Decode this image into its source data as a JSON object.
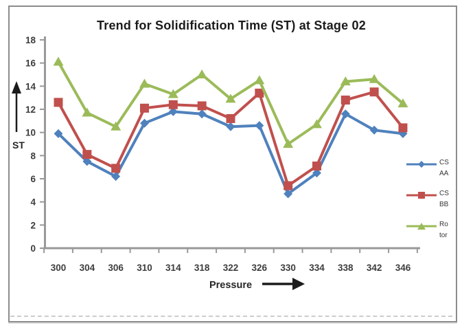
{
  "frame": {
    "border_color": "#8c8c8c"
  },
  "chart_data": {
    "type": "line",
    "title": "Trend for Solidification Time (ST) at Stage 02",
    "xlabel": "Pressure",
    "ylabel": "ST",
    "categories": [
      300,
      304,
      306,
      310,
      314,
      318,
      322,
      326,
      330,
      334,
      338,
      342,
      346
    ],
    "series": [
      {
        "name": "CS AA",
        "legend_lines": [
          "CS",
          "AA"
        ],
        "marker": "diamond",
        "color": "#4F81BD",
        "values": [
          9.9,
          7.5,
          6.2,
          10.8,
          11.8,
          11.6,
          10.5,
          10.6,
          4.7,
          6.5,
          11.6,
          10.2,
          9.9
        ]
      },
      {
        "name": "CS BB",
        "legend_lines": [
          "CS",
          "BB"
        ],
        "marker": "square",
        "color": "#C0504D",
        "values": [
          12.6,
          8.1,
          6.9,
          12.1,
          12.4,
          12.3,
          11.2,
          13.4,
          5.4,
          7.1,
          12.8,
          13.5,
          10.4
        ]
      },
      {
        "name": "Rotor",
        "legend_lines": [
          "Ro",
          "tor"
        ],
        "marker": "triangle",
        "color": "#9BBB59",
        "values": [
          16.1,
          11.7,
          10.5,
          14.2,
          13.3,
          15.0,
          12.9,
          14.5,
          9.0,
          10.7,
          14.4,
          14.6,
          12.5
        ]
      }
    ],
    "ylim": [
      0,
      18
    ],
    "ytick_step": 2,
    "grid": false,
    "legend_position": "right",
    "axis_color": "#999999",
    "tick_label_color": "#3d3d3d",
    "annotation_color": "#1b1b1b"
  }
}
